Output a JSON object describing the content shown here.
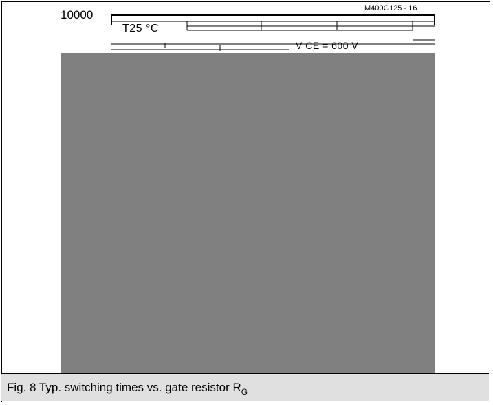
{
  "figure": {
    "code": "M400G125 - 16",
    "caption": "Fig. 8 Typ. switching times vs. gate resistor R",
    "caption_subscript": "G"
  },
  "chart_data": {
    "type": "line",
    "title": "",
    "xlabel": "",
    "ylabel": "",
    "y_tick_labels": [
      "10000"
    ],
    "conditions": {
      "temperature": "T25 °C",
      "left_fragment": "",
      "voltage_fragment": "V CE = 600 V"
    },
    "series": [],
    "plot_area_obscured": true,
    "area_color": "#808080",
    "caption_bg": "#e0e0e0"
  }
}
